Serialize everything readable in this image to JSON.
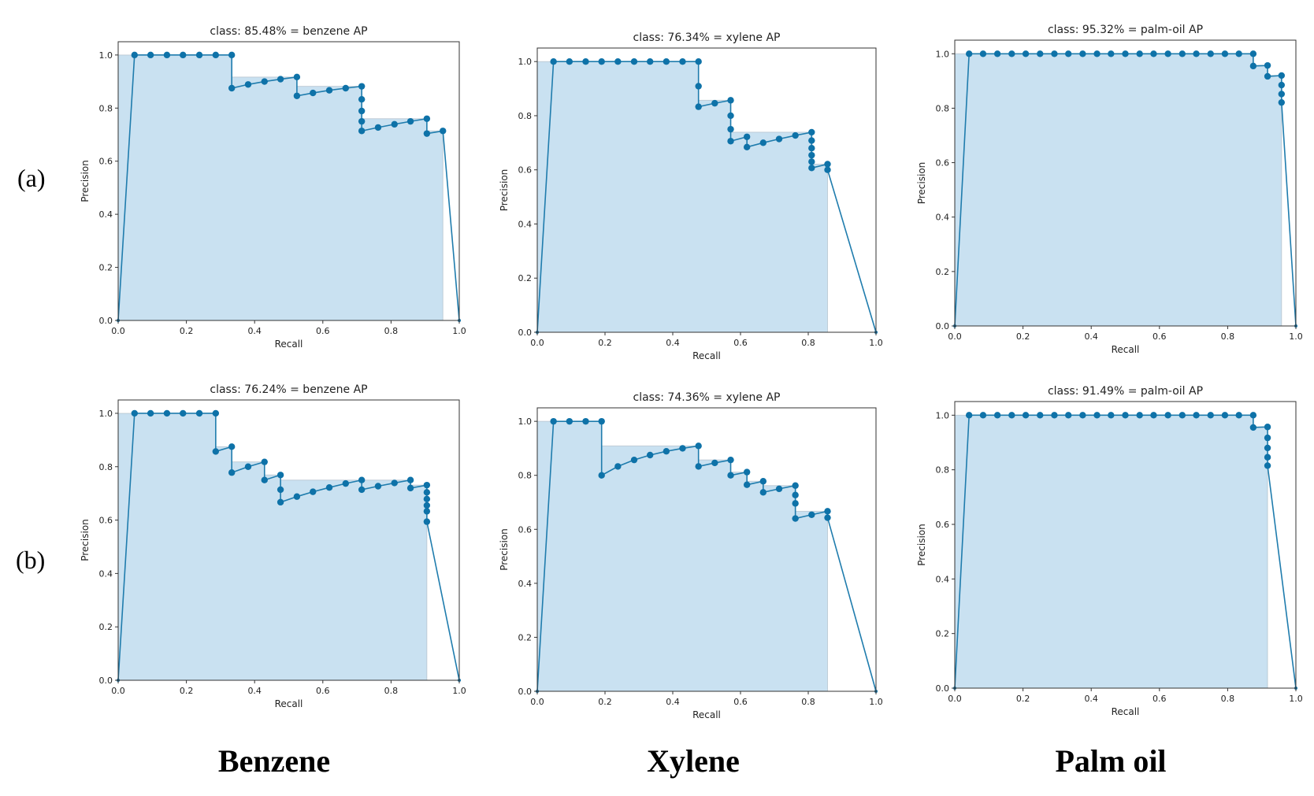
{
  "row_labels": [
    "(a)",
    "(b)"
  ],
  "column_labels": [
    "Benzene",
    "Xylene",
    "Palm oil"
  ],
  "colors": {
    "area": "#c9e1f1",
    "line": "#1f7cad",
    "point": "#0e72a8",
    "frame": "#333333"
  },
  "chart_data": [
    {
      "id": "a-benzene",
      "type": "line",
      "title": "class: 85.48% = benzene AP",
      "xlabel": "Recall",
      "ylabel": "Precision",
      "xlim": [
        0,
        1
      ],
      "ylim": [
        0,
        1.05
      ],
      "xticks": [
        "0.0",
        "0.2",
        "0.4",
        "0.6",
        "0.8",
        "1.0"
      ],
      "yticks": [
        "0.0",
        "0.2",
        "0.4",
        "0.6",
        "0.8",
        "1.0"
      ],
      "series": [
        {
          "name": "precision-recall",
          "x": [
            0,
            0.048,
            0.095,
            0.143,
            0.19,
            0.238,
            0.286,
            0.333,
            0.333,
            0.381,
            0.429,
            0.476,
            0.524,
            0.524,
            0.571,
            0.619,
            0.667,
            0.714,
            0.714,
            0.714,
            0.714,
            0.714,
            0.762,
            0.81,
            0.857,
            0.905,
            0.905,
            0.952,
            1.0
          ],
          "y": [
            0,
            1.0,
            1.0,
            1.0,
            1.0,
            1.0,
            1.0,
            1.0,
            0.875,
            0.889,
            0.9,
            0.909,
            0.917,
            0.846,
            0.857,
            0.867,
            0.875,
            0.882,
            0.833,
            0.789,
            0.75,
            0.714,
            0.727,
            0.739,
            0.75,
            0.76,
            0.704,
            0.714,
            0
          ]
        }
      ]
    },
    {
      "id": "a-xylene",
      "type": "line",
      "title": "class: 76.34% = xylene AP",
      "xlabel": "Recall",
      "ylabel": "Precision",
      "xlim": [
        0,
        1
      ],
      "ylim": [
        0,
        1.05
      ],
      "xticks": [
        "0.0",
        "0.2",
        "0.4",
        "0.6",
        "0.8",
        "1.0"
      ],
      "yticks": [
        "0.0",
        "0.2",
        "0.4",
        "0.6",
        "0.8",
        "1.0"
      ],
      "series": [
        {
          "name": "precision-recall",
          "x": [
            0,
            0.048,
            0.095,
            0.143,
            0.19,
            0.238,
            0.286,
            0.333,
            0.381,
            0.429,
            0.476,
            0.476,
            0.476,
            0.524,
            0.571,
            0.571,
            0.571,
            0.571,
            0.619,
            0.619,
            0.667,
            0.714,
            0.762,
            0.81,
            0.81,
            0.81,
            0.81,
            0.81,
            0.81,
            0.857,
            0.857,
            1.0
          ],
          "y": [
            0,
            1.0,
            1.0,
            1.0,
            1.0,
            1.0,
            1.0,
            1.0,
            1.0,
            1.0,
            1.0,
            0.909,
            0.833,
            0.846,
            0.857,
            0.8,
            0.75,
            0.706,
            0.722,
            0.684,
            0.7,
            0.714,
            0.727,
            0.739,
            0.708,
            0.68,
            0.654,
            0.63,
            0.607,
            0.621,
            0.6,
            0
          ]
        }
      ]
    },
    {
      "id": "a-palm-oil",
      "type": "line",
      "title": "class: 95.32% = palm-oil AP",
      "xlabel": "Recall",
      "ylabel": "Precision",
      "xlim": [
        0,
        1
      ],
      "ylim": [
        0,
        1.05
      ],
      "xticks": [
        "0.0",
        "0.2",
        "0.4",
        "0.6",
        "0.8",
        "1.0"
      ],
      "yticks": [
        "0.0",
        "0.2",
        "0.4",
        "0.6",
        "0.8",
        "1.0"
      ],
      "series": [
        {
          "name": "precision-recall",
          "x": [
            0,
            0.042,
            0.083,
            0.125,
            0.167,
            0.208,
            0.25,
            0.292,
            0.333,
            0.375,
            0.417,
            0.458,
            0.5,
            0.542,
            0.583,
            0.625,
            0.667,
            0.708,
            0.75,
            0.792,
            0.833,
            0.875,
            0.875,
            0.917,
            0.917,
            0.958,
            0.958,
            0.958,
            0.958,
            1.0
          ],
          "y": [
            0,
            1.0,
            1.0,
            1.0,
            1.0,
            1.0,
            1.0,
            1.0,
            1.0,
            1.0,
            1.0,
            1.0,
            1.0,
            1.0,
            1.0,
            1.0,
            1.0,
            1.0,
            1.0,
            1.0,
            1.0,
            1.0,
            0.955,
            0.957,
            0.917,
            0.92,
            0.885,
            0.852,
            0.821,
            0
          ]
        }
      ]
    },
    {
      "id": "b-benzene",
      "type": "line",
      "title": "class: 76.24% = benzene AP",
      "xlabel": "Recall",
      "ylabel": "Precision",
      "xlim": [
        0,
        1
      ],
      "ylim": [
        0,
        1.05
      ],
      "xticks": [
        "0.0",
        "0.2",
        "0.4",
        "0.6",
        "0.8",
        "1.0"
      ],
      "yticks": [
        "0.0",
        "0.2",
        "0.4",
        "0.6",
        "0.8",
        "1.0"
      ],
      "series": [
        {
          "name": "precision-recall",
          "x": [
            0,
            0.048,
            0.095,
            0.143,
            0.19,
            0.238,
            0.286,
            0.286,
            0.333,
            0.333,
            0.381,
            0.429,
            0.429,
            0.476,
            0.476,
            0.476,
            0.524,
            0.571,
            0.619,
            0.667,
            0.714,
            0.714,
            0.762,
            0.81,
            0.857,
            0.857,
            0.905,
            0.905,
            0.905,
            0.905,
            0.905,
            0.905,
            1.0
          ],
          "y": [
            0,
            1.0,
            1.0,
            1.0,
            1.0,
            1.0,
            1.0,
            0.857,
            0.875,
            0.778,
            0.8,
            0.818,
            0.75,
            0.769,
            0.714,
            0.667,
            0.688,
            0.706,
            0.722,
            0.737,
            0.75,
            0.714,
            0.727,
            0.739,
            0.75,
            0.72,
            0.731,
            0.704,
            0.679,
            0.655,
            0.633,
            0.594,
            0
          ]
        }
      ]
    },
    {
      "id": "b-xylene",
      "type": "line",
      "title": "class: 74.36% = xylene AP",
      "xlabel": "Recall",
      "ylabel": "Precision",
      "xlim": [
        0,
        1
      ],
      "ylim": [
        0,
        1.05
      ],
      "xticks": [
        "0.0",
        "0.2",
        "0.4",
        "0.6",
        "0.8",
        "1.0"
      ],
      "yticks": [
        "0.0",
        "0.2",
        "0.4",
        "0.6",
        "0.8",
        "1.0"
      ],
      "series": [
        {
          "name": "precision-recall",
          "x": [
            0,
            0.048,
            0.095,
            0.143,
            0.19,
            0.19,
            0.238,
            0.286,
            0.333,
            0.381,
            0.429,
            0.476,
            0.476,
            0.524,
            0.571,
            0.571,
            0.619,
            0.619,
            0.667,
            0.667,
            0.714,
            0.762,
            0.762,
            0.762,
            0.762,
            0.81,
            0.857,
            0.857,
            1.0
          ],
          "y": [
            0,
            1.0,
            1.0,
            1.0,
            1.0,
            0.8,
            0.833,
            0.857,
            0.875,
            0.889,
            0.9,
            0.909,
            0.833,
            0.846,
            0.857,
            0.8,
            0.812,
            0.765,
            0.778,
            0.737,
            0.75,
            0.762,
            0.727,
            0.696,
            0.64,
            0.654,
            0.667,
            0.643,
            0
          ]
        }
      ]
    },
    {
      "id": "b-palm-oil",
      "type": "line",
      "title": "class: 91.49% = palm-oil AP",
      "xlabel": "Recall",
      "ylabel": "Precision",
      "xlim": [
        0,
        1
      ],
      "ylim": [
        0,
        1.05
      ],
      "xticks": [
        "0.0",
        "0.2",
        "0.4",
        "0.6",
        "0.8",
        "1.0"
      ],
      "yticks": [
        "0.0",
        "0.2",
        "0.4",
        "0.6",
        "0.8",
        "1.0"
      ],
      "series": [
        {
          "name": "precision-recall",
          "x": [
            0,
            0.042,
            0.083,
            0.125,
            0.167,
            0.208,
            0.25,
            0.292,
            0.333,
            0.375,
            0.417,
            0.458,
            0.5,
            0.542,
            0.583,
            0.625,
            0.667,
            0.708,
            0.75,
            0.792,
            0.833,
            0.875,
            0.875,
            0.917,
            0.917,
            0.917,
            0.917,
            0.917,
            1.0
          ],
          "y": [
            0,
            1.0,
            1.0,
            1.0,
            1.0,
            1.0,
            1.0,
            1.0,
            1.0,
            1.0,
            1.0,
            1.0,
            1.0,
            1.0,
            1.0,
            1.0,
            1.0,
            1.0,
            1.0,
            1.0,
            1.0,
            1.0,
            0.955,
            0.957,
            0.917,
            0.88,
            0.846,
            0.815,
            0
          ]
        }
      ]
    }
  ]
}
